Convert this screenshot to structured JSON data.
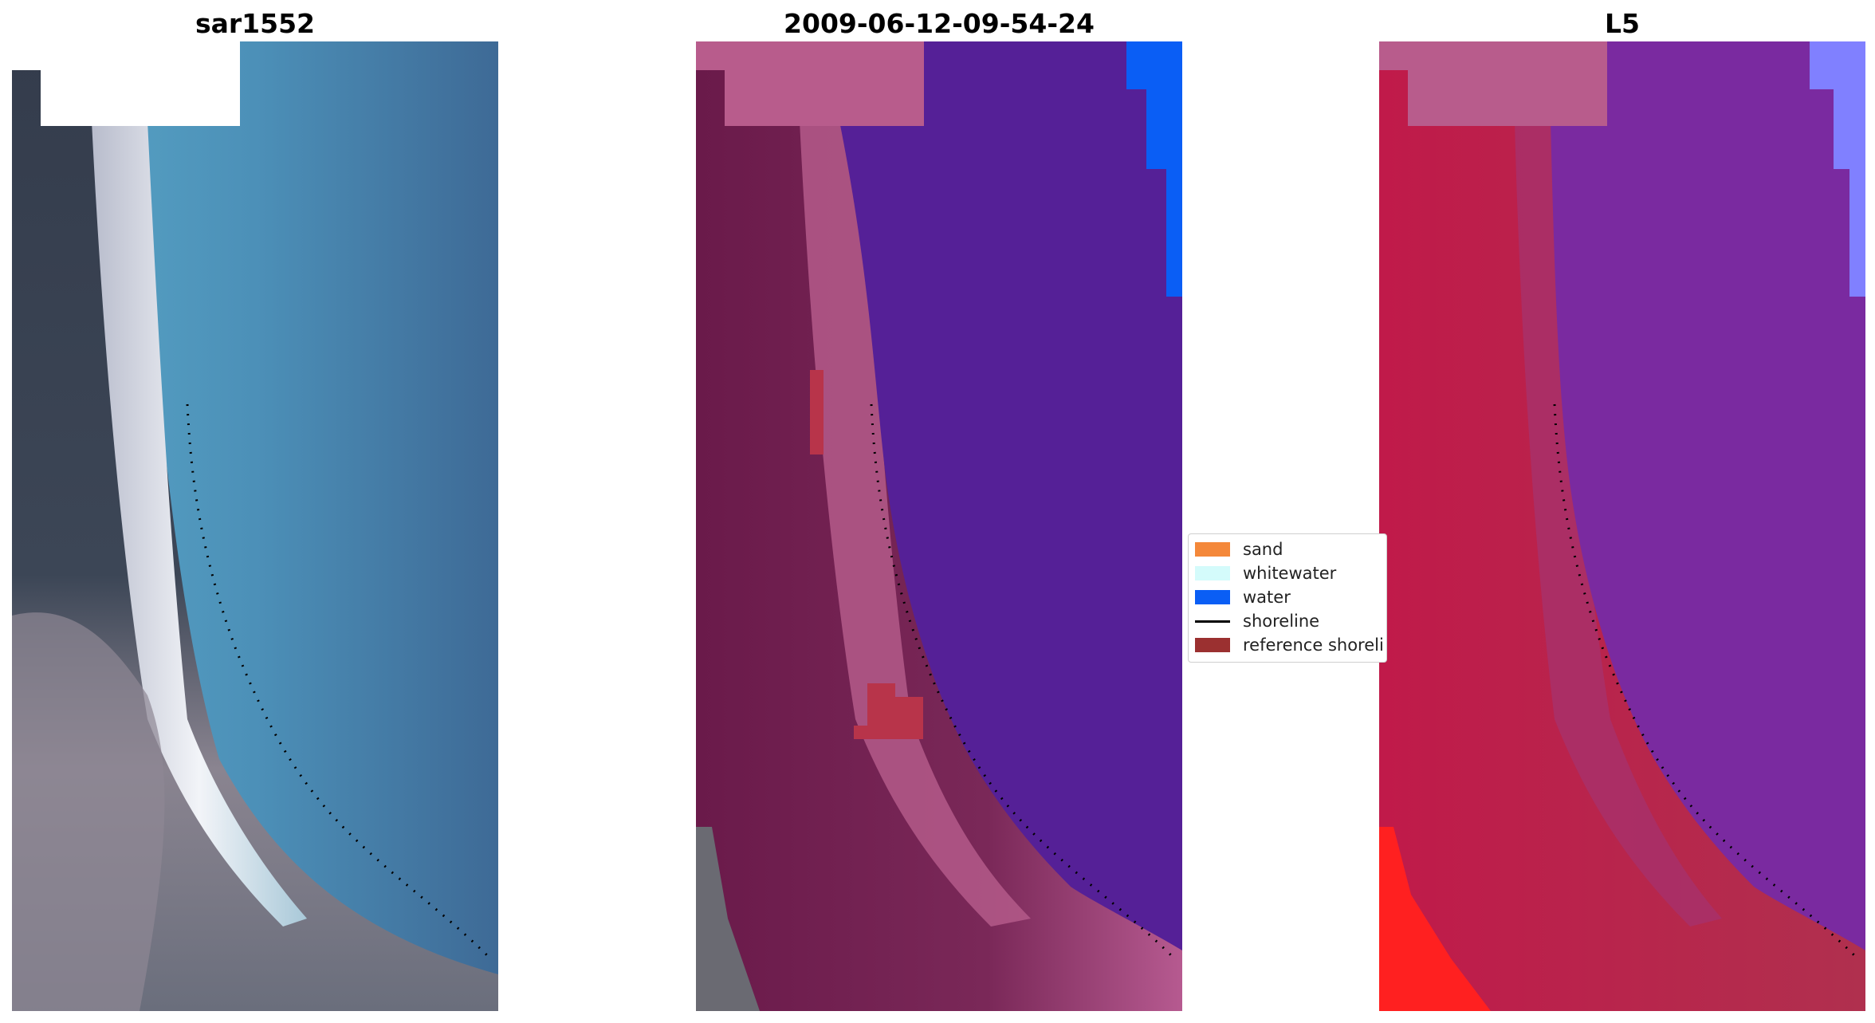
{
  "panels": [
    {
      "id": "rgb",
      "title": "sar1552"
    },
    {
      "id": "class",
      "title": "2009-06-12-09-54-24"
    },
    {
      "id": "index",
      "title": "L5"
    }
  ],
  "legend": {
    "items": [
      {
        "label": "sand",
        "color": "#f4883a",
        "kind": "patch"
      },
      {
        "label": "whitewater",
        "color": "#d4fbfb",
        "kind": "patch"
      },
      {
        "label": "water",
        "color": "#0a5ef5",
        "kind": "patch"
      },
      {
        "label": "shoreline",
        "color": "#000000",
        "kind": "line"
      },
      {
        "label": "reference shoreli",
        "color": "#9b3030",
        "kind": "patch"
      }
    ]
  },
  "colors": {
    "land_rgb": "#3a4556",
    "sea_rgb": "#4a88b0",
    "water_class": "#552097",
    "land_class": "#6d1e4e",
    "water_index": "#7a2aa0",
    "land_index": "#b81848",
    "reference_shoreline": "#b8344a"
  }
}
